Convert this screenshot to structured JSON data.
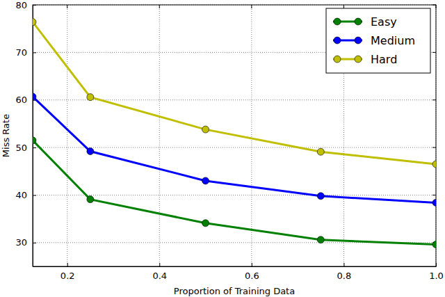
{
  "chart_data": {
    "type": "line",
    "x_label": "Proportion of Training Data",
    "y_label": "Miss Rate",
    "x": [
      0.125,
      0.25,
      0.5,
      0.75,
      1.0
    ],
    "series": [
      {
        "name": "Easy",
        "color": "#008000",
        "values": [
          51.5,
          39.1,
          34.1,
          30.6,
          29.6
        ]
      },
      {
        "name": "Medium",
        "color": "#0000ff",
        "values": [
          60.7,
          49.2,
          43.0,
          39.8,
          38.4
        ]
      },
      {
        "name": "Hard",
        "color": "#bfbf00",
        "values": [
          76.4,
          60.6,
          53.8,
          49.1,
          46.5
        ]
      }
    ],
    "xlim": [
      0.125,
      1.0
    ],
    "xticks": [
      0.2,
      0.4,
      0.6,
      0.8,
      {
        "value": 1.0,
        "label": "1.0"
      }
    ],
    "ylim": [
      25,
      80
    ],
    "yticks": [
      30,
      40,
      50,
      60,
      70,
      80
    ],
    "grid": true,
    "legend": "upper right",
    "marker": "circle",
    "line_style": "solid"
  }
}
